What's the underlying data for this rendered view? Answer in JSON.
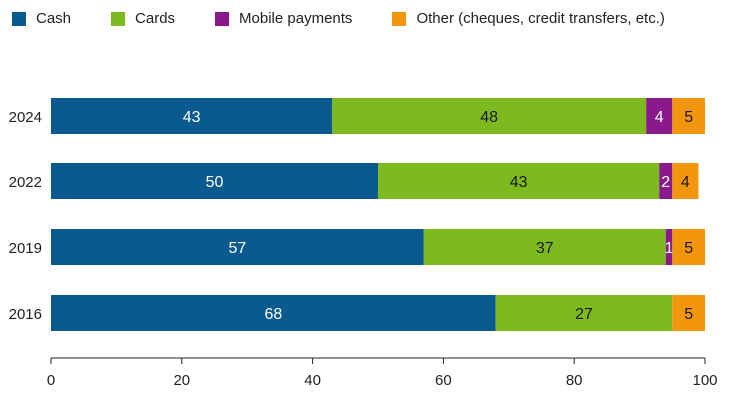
{
  "chart_data": {
    "type": "bar",
    "orientation": "horizontal",
    "stacked": true,
    "categories": [
      "2024",
      "2022",
      "2019",
      "2016"
    ],
    "series": [
      {
        "name": "Cash",
        "color": "#0a5a8f",
        "label_color": "#ffffff",
        "values": [
          43,
          50,
          57,
          68
        ]
      },
      {
        "name": "Cards",
        "color": "#7dba1f",
        "label_color": "#1a1a1a",
        "values": [
          48,
          43,
          37,
          27
        ]
      },
      {
        "name": "Mobile payments",
        "color": "#8a1a8c",
        "label_color": "#ffffff",
        "values": [
          4,
          2,
          1,
          0
        ]
      },
      {
        "name": "Other (cheques, credit transfers, etc.)",
        "color": "#f2960e",
        "label_color": "#1a1a1a",
        "values": [
          5,
          4,
          5,
          5
        ]
      }
    ],
    "data_labels": [
      [
        "43",
        "48",
        "4",
        "5"
      ],
      [
        "50",
        "43",
        "2",
        "4"
      ],
      [
        "57",
        "37",
        "1",
        "5"
      ],
      [
        "68",
        "27",
        "",
        "5"
      ]
    ],
    "xlim": [
      0,
      100
    ],
    "xticks": [
      "0",
      "20",
      "40",
      "60",
      "80",
      "100"
    ],
    "title": "",
    "xlabel": "",
    "ylabel": "",
    "legend_position": "top-left",
    "grid": false
  }
}
